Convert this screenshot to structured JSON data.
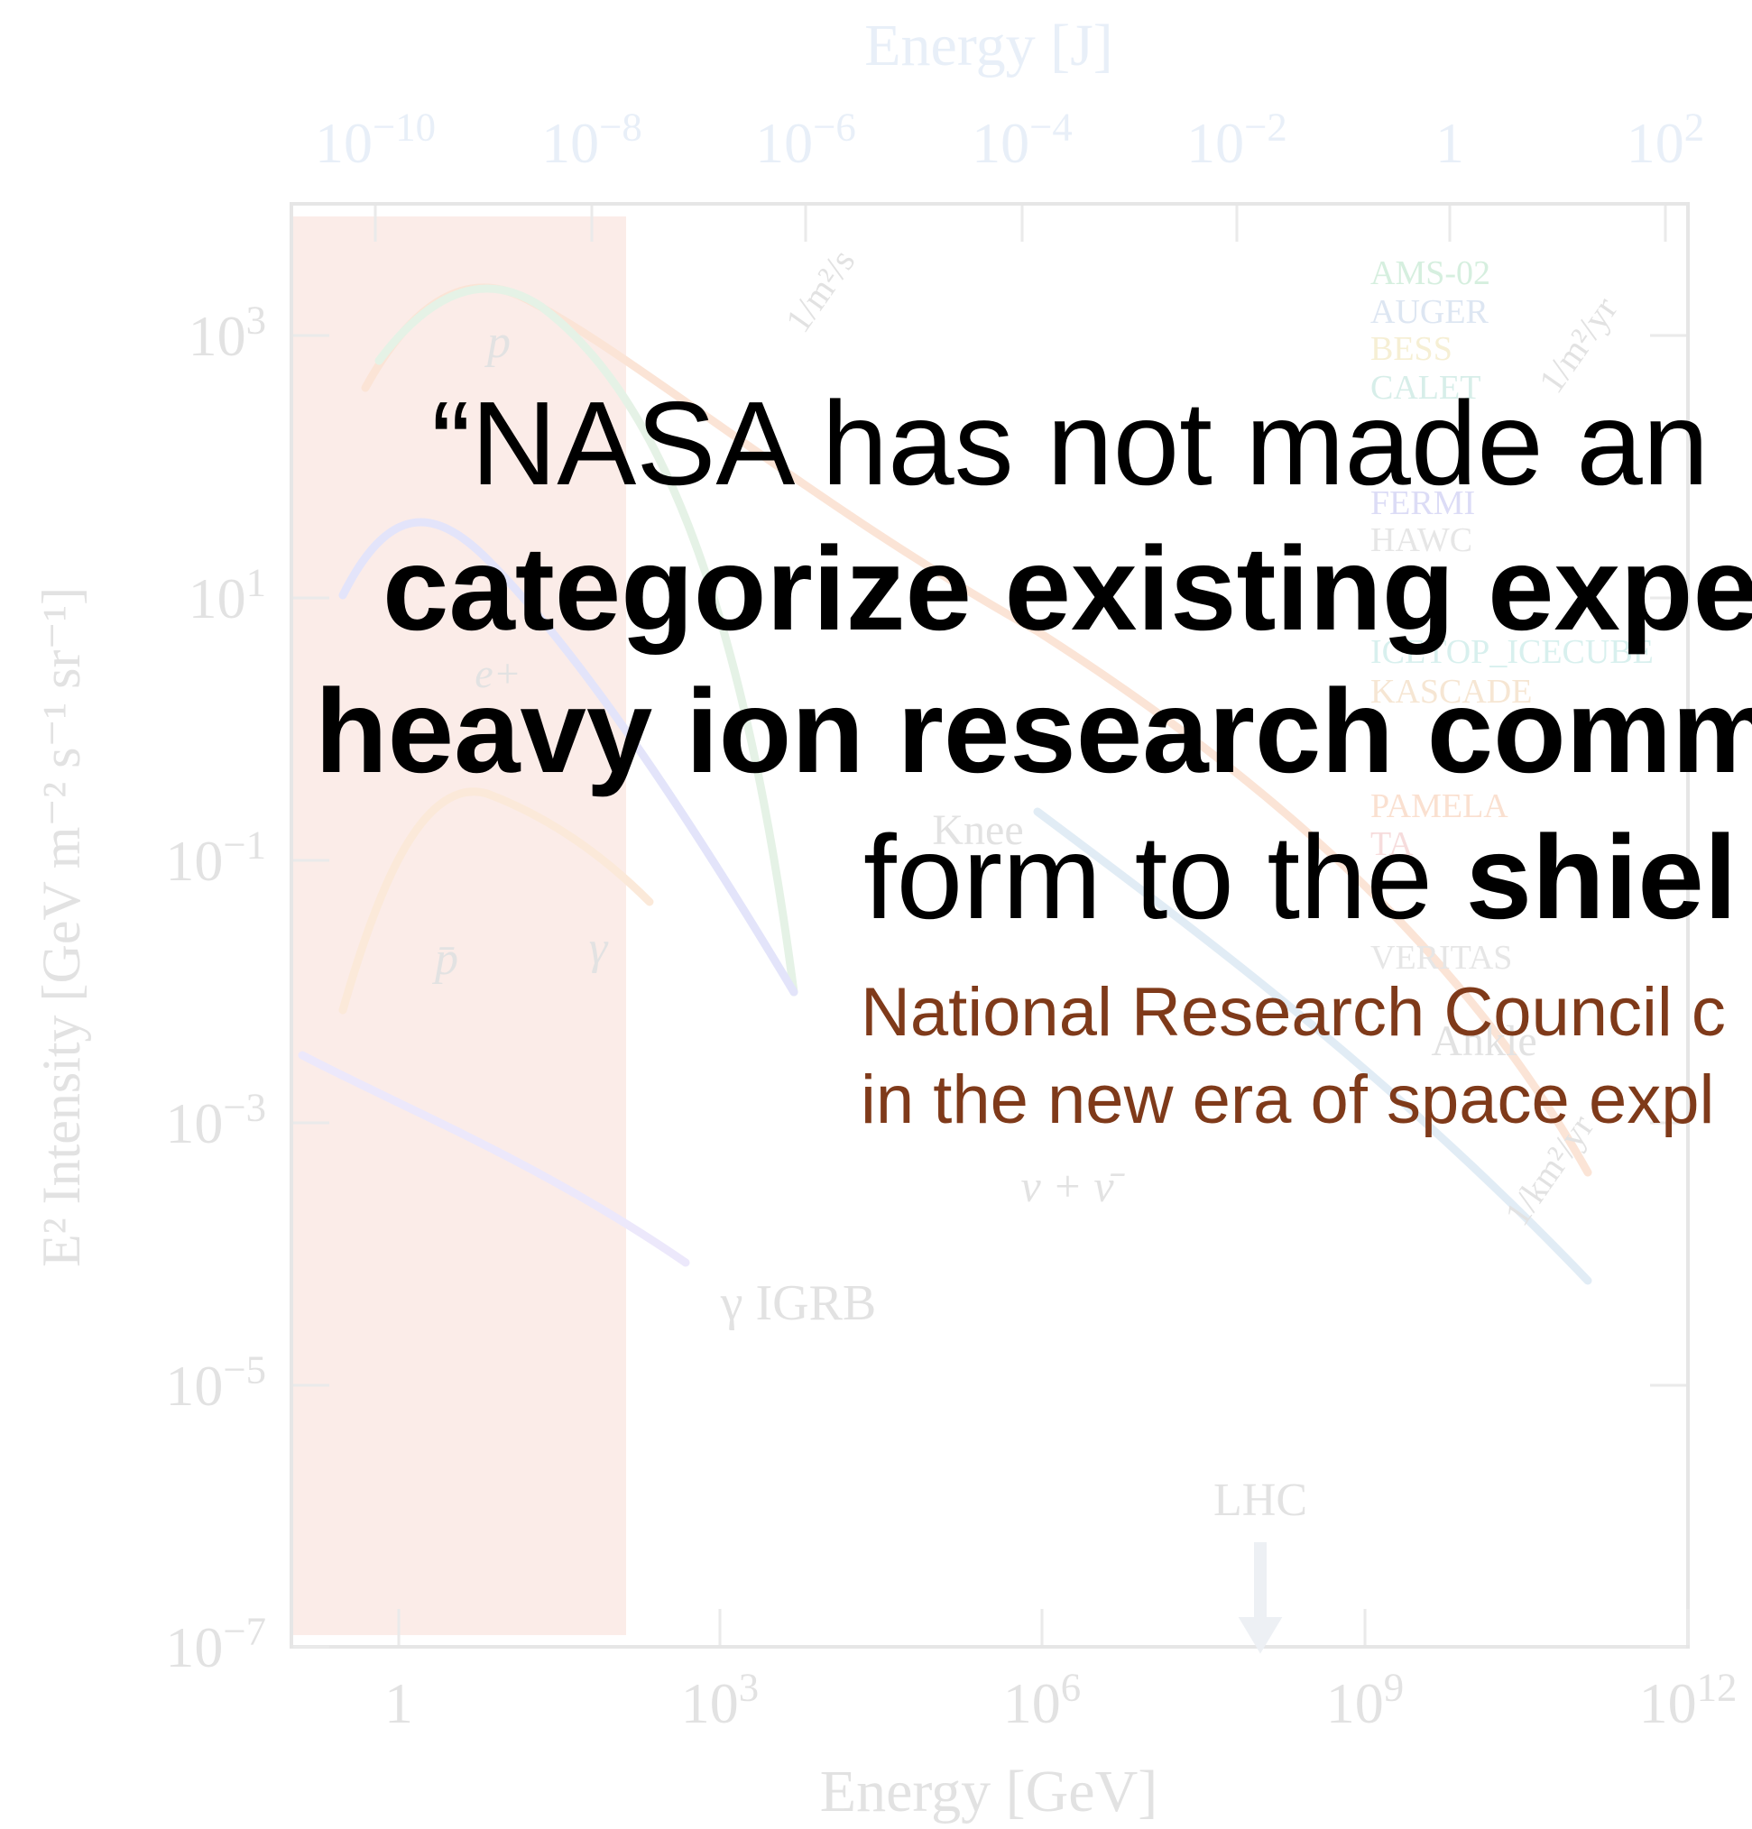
{
  "background_plot": {
    "top_axis_title": "Energy [J]",
    "top_ticks": [
      {
        "base": "10",
        "exp": "−10"
      },
      {
        "base": "10",
        "exp": "−8"
      },
      {
        "base": "10",
        "exp": "−6"
      },
      {
        "base": "10",
        "exp": "−4"
      },
      {
        "base": "10",
        "exp": "−2"
      },
      {
        "base": "1",
        "exp": ""
      },
      {
        "base": "10",
        "exp": "2"
      }
    ],
    "left_ticks": [
      {
        "base": "10",
        "exp": "3"
      },
      {
        "base": "10",
        "exp": "1"
      },
      {
        "base": "10",
        "exp": "−1"
      },
      {
        "base": "10",
        "exp": "−3"
      },
      {
        "base": "10",
        "exp": "−5"
      },
      {
        "base": "10",
        "exp": "−7"
      }
    ],
    "bottom_ticks": [
      {
        "base": "1",
        "exp": ""
      },
      {
        "base": "10",
        "exp": "3"
      },
      {
        "base": "10",
        "exp": "6"
      },
      {
        "base": "10",
        "exp": "9"
      },
      {
        "base": "10",
        "exp": "12"
      }
    ],
    "bottom_axis_title": "Energy [GeV]",
    "left_axis_title": "E² Intensity [GeV m⁻² s⁻¹ sr⁻¹]",
    "legend": [
      {
        "name": "AMS-02",
        "color": "#d6efdf"
      },
      {
        "name": "AUGER",
        "color": "#dde6f2"
      },
      {
        "name": "BESS",
        "color": "#f6efd4"
      },
      {
        "name": "CALET",
        "color": "#d7eee9"
      },
      {
        "name": "FERMI",
        "color": "#dcdcf6"
      },
      {
        "name": "HAWC",
        "color": "#e6e6e6"
      },
      {
        "name": "ICETOP_ICECUBE",
        "color": "#d8f0ee"
      },
      {
        "name": "KASCADE",
        "color": "#f6e6d3"
      },
      {
        "name": "PAMELA",
        "color": "#fae0d0"
      },
      {
        "name": "TA",
        "color": "#f6dcdc"
      },
      {
        "name": "VERITAS",
        "color": "#e6e6e6"
      }
    ],
    "annotations": [
      "p",
      "e+",
      "p̄",
      "γ",
      "Knee",
      "Ankle",
      "ν + ν̄",
      "γ IGRB",
      "LHC",
      "1/m²/s",
      "1/m²/yr",
      "1/km²/yr"
    ]
  },
  "quote": {
    "lines": [
      [
        {
          "text": "“NASA has not made an",
          "bold": false
        }
      ],
      [
        {
          "text": "categorize existing expe",
          "bold": true
        }
      ],
      [
        {
          "text": "heavy ion research comm",
          "bold": true
        }
      ],
      [
        {
          "text": "form to the ",
          "bold": false
        },
        {
          "text": "shiel",
          "bold": true
        }
      ]
    ],
    "citation": [
      "National Research Council c",
      "in the new era of space expl"
    ]
  }
}
